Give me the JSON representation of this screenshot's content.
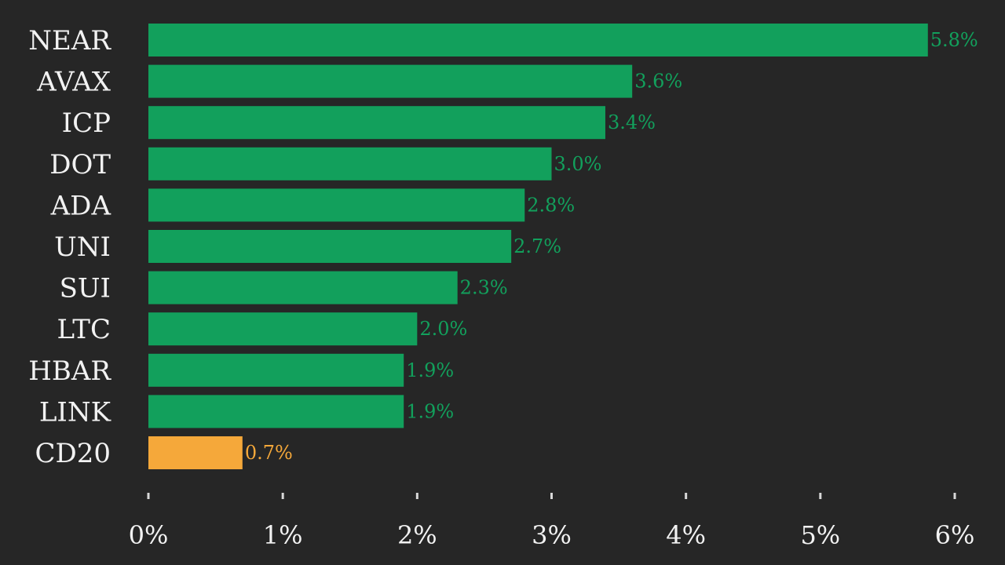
{
  "chart_data": {
    "type": "bar",
    "orientation": "horizontal",
    "categories": [
      "NEAR",
      "AVAX",
      "ICP",
      "DOT",
      "ADA",
      "UNI",
      "SUI",
      "LTC",
      "HBAR",
      "LINK",
      "CD20"
    ],
    "values": [
      5.8,
      3.6,
      3.4,
      3.0,
      2.8,
      2.7,
      2.3,
      2.0,
      1.9,
      1.9,
      0.7
    ],
    "value_labels": [
      "5.8%",
      "3.6%",
      "3.4%",
      "3.0%",
      "2.8%",
      "2.7%",
      "2.3%",
      "2.0%",
      "1.9%",
      "1.9%",
      "0.7%"
    ],
    "bar_colors": [
      "#12a05c",
      "#12a05c",
      "#12a05c",
      "#12a05c",
      "#12a05c",
      "#12a05c",
      "#12a05c",
      "#12a05c",
      "#12a05c",
      "#12a05c",
      "#f5a83a"
    ],
    "xlim": [
      0,
      6
    ],
    "x_ticks": [
      0,
      1,
      2,
      3,
      4,
      5,
      6
    ],
    "x_tick_labels": [
      "0%",
      "1%",
      "2%",
      "3%",
      "4%",
      "5%",
      "6%"
    ],
    "grid": false,
    "legend": "none",
    "background": "#262626",
    "text_color": "#f2f2f2"
  }
}
